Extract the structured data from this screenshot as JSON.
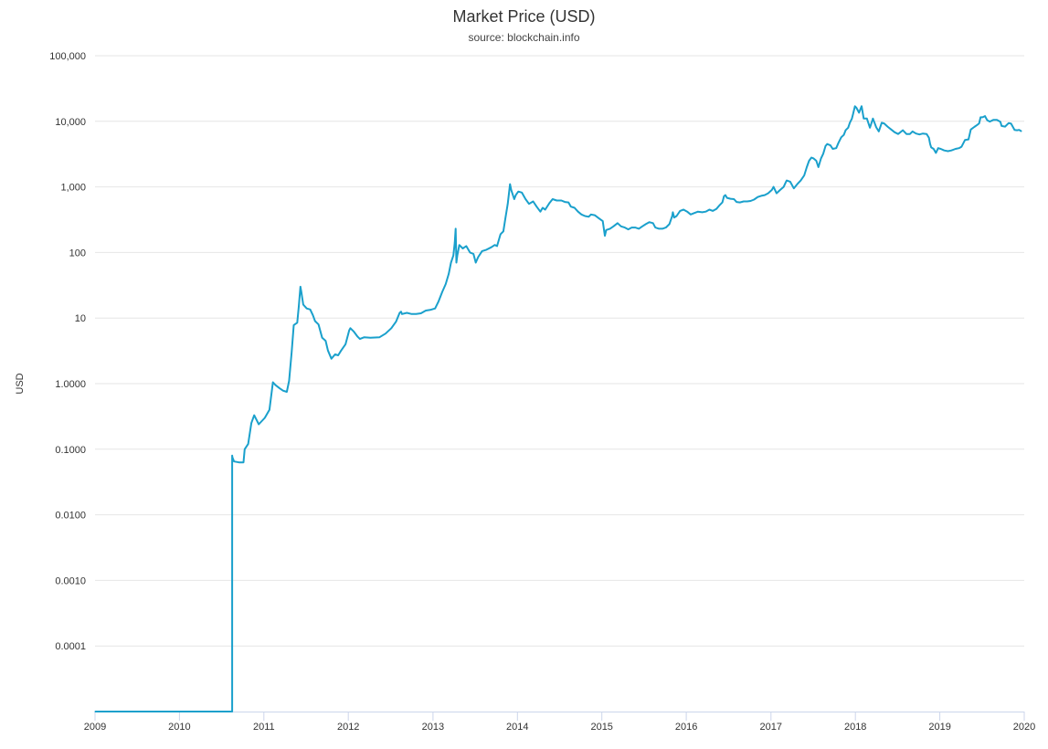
{
  "chart_data": {
    "type": "line",
    "title": "Market Price (USD)",
    "subtitle": "source: blockchain.info",
    "ylabel": "USD",
    "xlabel": "",
    "yscale": "log",
    "ylim": [
      1e-05,
      100000
    ],
    "xlim": [
      "2009-01-03",
      "2020-01-01"
    ],
    "grid": true,
    "legend": "none",
    "y_tick_labels": [
      "0.0001",
      "0.0010",
      "0.0100",
      "0.1000",
      "1.0000",
      "10",
      "100",
      "1,000",
      "10,000",
      "100,000"
    ],
    "y_tick_values": [
      0.0001,
      0.001,
      0.01,
      0.1,
      1,
      10,
      100,
      1000,
      10000,
      100000
    ],
    "x_tick_labels": [
      "2009",
      "2010",
      "2011",
      "2012",
      "2013",
      "2014",
      "2015",
      "2016",
      "2017",
      "2018",
      "2019",
      "2020"
    ],
    "x_tick_values": [
      "2009-01-01",
      "2010-01-01",
      "2011-01-01",
      "2012-01-01",
      "2013-01-01",
      "2014-01-01",
      "2015-01-01",
      "2016-01-01",
      "2017-01-01",
      "2018-01-01",
      "2019-01-01",
      "2020-01-01"
    ],
    "colors": {
      "series": "#1aa0cc",
      "grid": "#e6e6e6",
      "axis": "#ccd6eb"
    },
    "series": [
      {
        "x": [
          "2009-01-03",
          "2010-08-17",
          "2010-08-17",
          "2010-08-18",
          "2010-08-25",
          "2010-09-15",
          "2010-10-05",
          "2010-10-10",
          "2010-10-25",
          "2010-11-08",
          "2010-11-20",
          "2010-12-10",
          "2011-01-05",
          "2011-01-25",
          "2011-02-09",
          "2011-02-20",
          "2011-03-10",
          "2011-03-25",
          "2011-04-10",
          "2011-04-20",
          "2011-05-01",
          "2011-05-10",
          "2011-05-25",
          "2011-06-01",
          "2011-06-08",
          "2011-06-12",
          "2011-06-20",
          "2011-07-05",
          "2011-07-20",
          "2011-08-01",
          "2011-08-10",
          "2011-08-25",
          "2011-09-10",
          "2011-09-25",
          "2011-10-05",
          "2011-10-20",
          "2011-11-05",
          "2011-11-18",
          "2011-12-01",
          "2011-12-20",
          "2012-01-05",
          "2012-01-10",
          "2012-01-25",
          "2012-02-10",
          "2012-02-20",
          "2012-03-10",
          "2012-04-05",
          "2012-05-15",
          "2012-06-10",
          "2012-07-05",
          "2012-07-25",
          "2012-08-10",
          "2012-08-16",
          "2012-08-20",
          "2012-09-10",
          "2012-10-01",
          "2012-10-20",
          "2012-11-10",
          "2012-12-01",
          "2012-12-20",
          "2013-01-10",
          "2013-01-25",
          "2013-02-10",
          "2013-02-25",
          "2013-03-10",
          "2013-03-20",
          "2013-03-30",
          "2013-04-05",
          "2013-04-09",
          "2013-04-12",
          "2013-04-16",
          "2013-04-25",
          "2013-05-10",
          "2013-05-25",
          "2013-06-10",
          "2013-06-25",
          "2013-07-05",
          "2013-07-15",
          "2013-08-01",
          "2013-08-20",
          "2013-09-10",
          "2013-09-25",
          "2013-10-05",
          "2013-10-20",
          "2013-11-01",
          "2013-11-10",
          "2013-11-20",
          "2013-11-30",
          "2013-12-05",
          "2013-12-10",
          "2013-12-18",
          "2013-12-25",
          "2014-01-05",
          "2014-01-20",
          "2014-02-05",
          "2014-02-20",
          "2014-03-10",
          "2014-03-25",
          "2014-04-10",
          "2014-04-20",
          "2014-05-01",
          "2014-05-20",
          "2014-06-02",
          "2014-06-20",
          "2014-07-10",
          "2014-07-25",
          "2014-08-10",
          "2014-08-20",
          "2014-09-05",
          "2014-09-20",
          "2014-10-05",
          "2014-10-20",
          "2014-11-05",
          "2014-11-15",
          "2014-12-01",
          "2014-12-20",
          "2015-01-05",
          "2015-01-14",
          "2015-01-20",
          "2015-02-05",
          "2015-02-20",
          "2015-03-10",
          "2015-03-25",
          "2015-04-10",
          "2015-04-25",
          "2015-05-10",
          "2015-05-25",
          "2015-06-10",
          "2015-06-25",
          "2015-07-10",
          "2015-07-25",
          "2015-08-10",
          "2015-08-20",
          "2015-09-05",
          "2015-09-20",
          "2015-10-05",
          "2015-10-20",
          "2015-11-01",
          "2015-11-04",
          "2015-11-10",
          "2015-11-20",
          "2015-12-05",
          "2015-12-20",
          "2016-01-05",
          "2016-01-20",
          "2016-02-05",
          "2016-02-20",
          "2016-03-10",
          "2016-03-25",
          "2016-04-10",
          "2016-04-25",
          "2016-05-10",
          "2016-05-25",
          "2016-06-05",
          "2016-06-12",
          "2016-06-18",
          "2016-06-25",
          "2016-07-10",
          "2016-07-25",
          "2016-08-05",
          "2016-08-20",
          "2016-09-05",
          "2016-09-20",
          "2016-10-05",
          "2016-10-20",
          "2016-11-05",
          "2016-11-20",
          "2016-12-05",
          "2016-12-20",
          "2017-01-05",
          "2017-01-12",
          "2017-01-25",
          "2017-02-10",
          "2017-02-25",
          "2017-03-05",
          "2017-03-10",
          "2017-03-25",
          "2017-04-10",
          "2017-04-25",
          "2017-05-10",
          "2017-05-25",
          "2017-06-05",
          "2017-06-15",
          "2017-06-25",
          "2017-07-05",
          "2017-07-16",
          "2017-07-25",
          "2017-08-05",
          "2017-08-15",
          "2017-08-25",
          "2017-09-01",
          "2017-09-15",
          "2017-09-25",
          "2017-10-10",
          "2017-10-20",
          "2017-11-01",
          "2017-11-12",
          "2017-11-20",
          "2017-12-01",
          "2017-12-08",
          "2017-12-17",
          "2017-12-22",
          "2017-12-30",
          "2018-01-06",
          "2018-01-17",
          "2018-01-28",
          "2018-02-06",
          "2018-02-20",
          "2018-03-05",
          "2018-03-18",
          "2018-04-01",
          "2018-04-12",
          "2018-04-25",
          "2018-05-05",
          "2018-05-20",
          "2018-06-05",
          "2018-06-20",
          "2018-07-05",
          "2018-07-25",
          "2018-08-10",
          "2018-08-25",
          "2018-09-05",
          "2018-09-20",
          "2018-10-05",
          "2018-10-20",
          "2018-11-05",
          "2018-11-15",
          "2018-11-20",
          "2018-11-25",
          "2018-12-05",
          "2018-12-15",
          "2018-12-25",
          "2019-01-05",
          "2019-01-20",
          "2019-02-05",
          "2019-02-20",
          "2019-03-10",
          "2019-03-25",
          "2019-04-05",
          "2019-04-20",
          "2019-05-05",
          "2019-05-15",
          "2019-05-30",
          "2019-06-10",
          "2019-06-20",
          "2019-06-26",
          "2019-07-05",
          "2019-07-15",
          "2019-07-25",
          "2019-08-05",
          "2019-08-20",
          "2019-09-05",
          "2019-09-20",
          "2019-09-25",
          "2019-10-10",
          "2019-10-26",
          "2019-11-05",
          "2019-11-20",
          "2019-12-01",
          "2019-12-10",
          "2019-12-18"
        ],
        "y": [
          1e-05,
          1e-05,
          0.08,
          0.075,
          0.065,
          0.063,
          0.063,
          0.1,
          0.12,
          0.25,
          0.33,
          0.24,
          0.3,
          0.4,
          1.05,
          0.95,
          0.85,
          0.78,
          0.75,
          1.1,
          3.0,
          7.8,
          8.5,
          15.0,
          30.0,
          25.0,
          16.0,
          14.0,
          13.5,
          11.0,
          9.0,
          8.0,
          5.0,
          4.5,
          3.2,
          2.4,
          2.8,
          2.7,
          3.2,
          4.0,
          6.5,
          7.0,
          6.2,
          5.2,
          4.8,
          5.1,
          5.0,
          5.1,
          5.8,
          7.0,
          8.8,
          12.0,
          12.5,
          11.5,
          12.0,
          11.5,
          11.5,
          11.8,
          13.0,
          13.3,
          14.0,
          18.0,
          25.0,
          33.0,
          47.0,
          70.0,
          90.0,
          140.0,
          230.0,
          70.0,
          90.0,
          130.0,
          115.0,
          125.0,
          100.0,
          95.0,
          70.0,
          85.0,
          105.0,
          110.0,
          120.0,
          130.0,
          125.0,
          190.0,
          210.0,
          330.0,
          550.0,
          1100.0,
          900.0,
          800.0,
          650.0,
          750.0,
          850.0,
          820.0,
          650.0,
          550.0,
          600.0,
          500.0,
          420.0,
          480.0,
          450.0,
          570.0,
          650.0,
          620.0,
          620.0,
          590.0,
          580.0,
          500.0,
          480.0,
          420.0,
          380.0,
          360.0,
          350.0,
          380.0,
          370.0,
          330.0,
          300.0,
          180.0,
          220.0,
          230.0,
          250.0,
          280.0,
          250.0,
          240.0,
          225.0,
          240.0,
          240.0,
          230.0,
          250.0,
          270.0,
          290.0,
          280.0,
          240.0,
          230.0,
          230.0,
          240.0,
          270.0,
          360.0,
          410.0,
          340.0,
          360.0,
          430.0,
          450.0,
          420.0,
          380.0,
          400.0,
          420.0,
          410.0,
          420.0,
          450.0,
          430.0,
          460.0,
          530.0,
          580.0,
          720.0,
          750.0,
          680.0,
          660.0,
          650.0,
          590.0,
          580.0,
          600.0,
          600.0,
          610.0,
          640.0,
          700.0,
          730.0,
          750.0,
          800.0,
          900.0,
          1000.0,
          800.0,
          900.0,
          1000.0,
          1150.0,
          1250.0,
          1200.0,
          950.0,
          1100.0,
          1250.0,
          1500.0,
          2000.0,
          2500.0,
          2800.0,
          2700.0,
          2500.0,
          2000.0,
          2700.0,
          3200.0,
          4200.0,
          4500.0,
          4300.0,
          3800.0,
          3900.0,
          4700.0,
          5700.0,
          6200.0,
          7300.0,
          8000.0,
          9500.0,
          11000.0,
          13000.0,
          17000.0,
          16000.0,
          13500.0,
          17000.0,
          11000.0,
          11000.0,
          8000.0,
          11000.0,
          8100.0,
          7000.0,
          9500.0,
          9300.0,
          8300.0,
          7500.0,
          6800.0,
          6400.0,
          7300.0,
          6400.0,
          6400.0,
          7000.0,
          6500.0,
          6300.0,
          6500.0,
          6400.0,
          5600.0,
          4500.0,
          4000.0,
          3800.0,
          3300.0,
          3900.0,
          3800.0,
          3600.0,
          3500.0,
          3600.0,
          3800.0,
          3900.0,
          4100.0,
          5200.0,
          5300.0,
          7500.0,
          8200.0,
          8700.0,
          9300.0,
          11500.0,
          11500.0,
          12000.0,
          10400.0,
          9900.0,
          10500.0,
          10500.0,
          9800.0,
          8500.0,
          8300.0,
          9400.0,
          9200.0,
          7400.0,
          7300.0,
          7400.0,
          7100.0
        ]
      }
    ]
  }
}
